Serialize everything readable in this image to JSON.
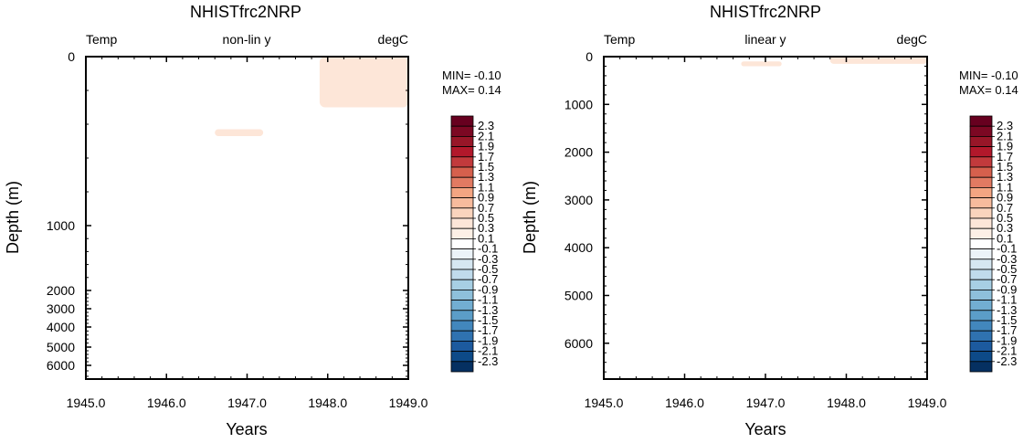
{
  "chart_data": [
    {
      "type": "heatmap",
      "title": "NHISTfrc2NRP",
      "left_label": "Temp",
      "center_label": "non-lin y",
      "right_label": "degC",
      "xlabel": "Years",
      "ylabel": "Depth (m)",
      "xlim": [
        1945.0,
        1949.0
      ],
      "ylim": [
        0,
        6500
      ],
      "y_scale": "non-linear",
      "x_ticks": [
        "1945.0",
        "1946.0",
        "1947.0",
        "1948.0",
        "1949.0"
      ],
      "y_ticks": [
        "0",
        "1000",
        "2000",
        "3000",
        "4000",
        "5000",
        "6000"
      ],
      "min_label": "MIN= -0.10",
      "max_label": "MAX=  0.14",
      "filled_regions": [
        {
          "level": "0.1 to 0.3",
          "x_range": [
            1947.9,
            1949.0
          ],
          "depth_range": [
            0,
            300
          ],
          "note": "upper-right warm patch"
        },
        {
          "level": "0.1 to 0.3",
          "x_range": [
            1946.6,
            1947.2
          ],
          "depth_range": [
            430,
            470
          ],
          "note": "small lens near 450 m"
        }
      ]
    },
    {
      "type": "heatmap",
      "title": "NHISTfrc2NRP",
      "left_label": "Temp",
      "center_label": "linear y",
      "right_label": "degC",
      "xlabel": "Years",
      "ylabel": "Depth (m)",
      "xlim": [
        1945.0,
        1949.0
      ],
      "ylim": [
        0,
        6750
      ],
      "y_scale": "linear",
      "x_ticks": [
        "1945.0",
        "1946.0",
        "1947.0",
        "1948.0",
        "1949.0"
      ],
      "y_ticks": [
        "0",
        "1000",
        "2000",
        "3000",
        "4000",
        "5000",
        "6000"
      ],
      "min_label": "MIN= -0.10",
      "max_label": "MAX=  0.14",
      "filled_regions": [
        {
          "level": "0.1 to 0.3",
          "x_range": [
            1946.7,
            1947.2
          ],
          "depth_range": [
            100,
            200
          ],
          "note": "thin lens"
        },
        {
          "level": "0.1 to 0.3",
          "x_range": [
            1947.8,
            1949.0
          ],
          "depth_range": [
            0,
            150
          ],
          "note": "near-surface warm band"
        }
      ]
    }
  ],
  "colorbar": {
    "labels": [
      "2.3",
      "2.1",
      "1.9",
      "1.7",
      "1.5",
      "1.3",
      "1.1",
      "0.9",
      "0.7",
      "0.5",
      "0.3",
      "0.1",
      "-0.1",
      "-0.3",
      "-0.5",
      "-0.7",
      "-0.9",
      "-1.1",
      "-1.3",
      "-1.5",
      "-1.7",
      "-1.9",
      "-2.1",
      "-2.3"
    ],
    "colors": [
      "#67001f",
      "#7c0823",
      "#981628",
      "#b2182b",
      "#c23a3c",
      "#d6604d",
      "#e27a62",
      "#f4a582",
      "#f7bb9d",
      "#fad4bd",
      "#fde6d8",
      "#fdf0e6",
      "#ffffff",
      "#ecf3f8",
      "#d6e7f1",
      "#c0dbec",
      "#a7cfe4",
      "#8ec0db",
      "#72aed2",
      "#5b9dc8",
      "#4287bd",
      "#2f72b0",
      "#1c5a9e",
      "#0d4a88",
      "#053061"
    ]
  }
}
